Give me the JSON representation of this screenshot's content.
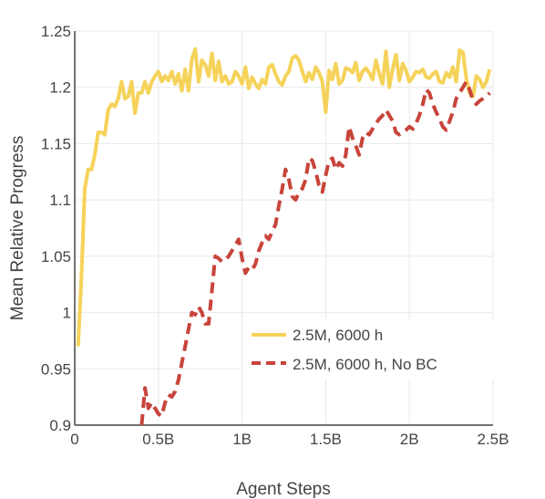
{
  "chart_data": {
    "type": "line",
    "xlabel": "Agent Steps",
    "ylabel": "Mean Relative Progress",
    "xlim": [
      0,
      2500000000
    ],
    "ylim": [
      0.9,
      1.25
    ],
    "xticks": [
      0,
      500000000,
      1000000000,
      1500000000,
      2000000000,
      2500000000
    ],
    "xtick_labels": [
      "0",
      "0.5B",
      "1B",
      "1.5B",
      "2B",
      "2.5B"
    ],
    "yticks": [
      0.9,
      0.95,
      1.0,
      1.05,
      1.1,
      1.15,
      1.2,
      1.25
    ],
    "ytick_labels": [
      "0.9",
      "0.95",
      "1",
      "1.05",
      "1.1",
      "1.15",
      "1.2",
      "1.25"
    ],
    "grid": true,
    "legend_position": "lower-right",
    "series": [
      {
        "name": "2.5M, 6000 h",
        "color": "#F5D35A",
        "dash": "solid",
        "x": [
          20000000,
          40000000,
          60000000,
          80000000,
          100000000,
          120000000,
          140000000,
          160000000,
          180000000,
          200000000,
          220000000,
          240000000,
          260000000,
          280000000,
          300000000,
          320000000,
          340000000,
          360000000,
          380000000,
          400000000,
          420000000,
          440000000,
          460000000,
          480000000,
          500000000,
          520000000,
          540000000,
          560000000,
          580000000,
          600000000,
          620000000,
          640000000,
          660000000,
          680000000,
          700000000,
          720000000,
          740000000,
          760000000,
          780000000,
          800000000,
          820000000,
          840000000,
          860000000,
          880000000,
          900000000,
          920000000,
          940000000,
          960000000,
          980000000,
          1000000000,
          1020000000,
          1040000000,
          1060000000,
          1080000000,
          1100000000,
          1120000000,
          1140000000,
          1160000000,
          1180000000,
          1200000000,
          1220000000,
          1240000000,
          1260000000,
          1280000000,
          1300000000,
          1320000000,
          1340000000,
          1360000000,
          1380000000,
          1400000000,
          1420000000,
          1440000000,
          1460000000,
          1480000000,
          1500000000,
          1520000000,
          1540000000,
          1560000000,
          1580000000,
          1600000000,
          1620000000,
          1640000000,
          1660000000,
          1680000000,
          1700000000,
          1720000000,
          1740000000,
          1760000000,
          1780000000,
          1800000000,
          1820000000,
          1840000000,
          1860000000,
          1880000000,
          1900000000,
          1920000000,
          1940000000,
          1960000000,
          1980000000,
          2000000000,
          2020000000,
          2040000000,
          2060000000,
          2080000000,
          2100000000,
          2120000000,
          2140000000,
          2160000000,
          2180000000,
          2200000000,
          2220000000,
          2240000000,
          2260000000,
          2280000000,
          2300000000,
          2320000000,
          2340000000,
          2360000000,
          2380000000,
          2400000000,
          2420000000,
          2440000000,
          2460000000,
          2480000000
        ],
        "y": [
          0.97,
          1.03,
          1.11,
          1.127,
          1.127,
          1.14,
          1.16,
          1.16,
          1.158,
          1.18,
          1.185,
          1.183,
          1.19,
          1.205,
          1.19,
          1.192,
          1.205,
          1.177,
          1.195,
          1.195,
          1.205,
          1.195,
          1.205,
          1.21,
          1.214,
          1.205,
          1.21,
          1.206,
          1.214,
          1.203,
          1.212,
          1.197,
          1.216,
          1.197,
          1.225,
          1.234,
          1.205,
          1.224,
          1.22,
          1.21,
          1.23,
          1.206,
          1.223,
          1.205,
          1.21,
          1.203,
          1.205,
          1.214,
          1.21,
          1.203,
          1.218,
          1.199,
          1.209,
          1.203,
          1.199,
          1.207,
          1.203,
          1.218,
          1.22,
          1.212,
          1.205,
          1.202,
          1.21,
          1.214,
          1.226,
          1.228,
          1.224,
          1.214,
          1.205,
          1.213,
          1.207,
          1.218,
          1.213,
          1.205,
          1.178,
          1.215,
          1.207,
          1.221,
          1.203,
          1.206,
          1.217,
          1.216,
          1.213,
          1.222,
          1.206,
          1.214,
          1.217,
          1.213,
          1.207,
          1.224,
          1.212,
          1.203,
          1.232,
          1.2,
          1.216,
          1.229,
          1.206,
          1.221,
          1.215,
          1.205,
          1.209,
          1.214,
          1.213,
          1.216,
          1.209,
          1.208,
          1.212,
          1.214,
          1.205,
          1.204,
          1.213,
          1.209,
          1.218,
          1.205,
          1.233,
          1.231,
          1.208,
          1.195,
          1.192,
          1.21,
          1.207,
          1.2,
          1.205,
          1.216
        ]
      },
      {
        "name": "2.5M, 6000 h, No BC",
        "color": "#C8443B",
        "dash": "dashed",
        "x": [
          400000000,
          420000000,
          440000000,
          460000000,
          480000000,
          500000000,
          520000000,
          540000000,
          560000000,
          580000000,
          600000000,
          620000000,
          640000000,
          660000000,
          680000000,
          700000000,
          720000000,
          740000000,
          760000000,
          780000000,
          800000000,
          820000000,
          840000000,
          860000000,
          880000000,
          900000000,
          920000000,
          940000000,
          960000000,
          980000000,
          1000000000,
          1020000000,
          1040000000,
          1060000000,
          1080000000,
          1100000000,
          1120000000,
          1140000000,
          1160000000,
          1180000000,
          1200000000,
          1220000000,
          1240000000,
          1260000000,
          1280000000,
          1300000000,
          1320000000,
          1340000000,
          1360000000,
          1380000000,
          1400000000,
          1420000000,
          1440000000,
          1460000000,
          1480000000,
          1500000000,
          1520000000,
          1540000000,
          1560000000,
          1580000000,
          1600000000,
          1620000000,
          1640000000,
          1660000000,
          1680000000,
          1700000000,
          1720000000,
          1740000000,
          1760000000,
          1780000000,
          1800000000,
          1820000000,
          1840000000,
          1860000000,
          1880000000,
          1900000000,
          1920000000,
          1940000000,
          1960000000,
          1980000000,
          2000000000,
          2020000000,
          2040000000,
          2060000000,
          2080000000,
          2100000000,
          2120000000,
          2140000000,
          2160000000,
          2180000000,
          2200000000,
          2220000000,
          2240000000,
          2260000000,
          2280000000,
          2300000000,
          2320000000,
          2340000000,
          2360000000,
          2380000000,
          2400000000,
          2420000000,
          2440000000,
          2460000000,
          2480000000
        ],
        "y": [
          0.9,
          0.933,
          0.915,
          0.92,
          0.915,
          0.91,
          0.908,
          0.92,
          0.927,
          0.925,
          0.93,
          0.94,
          0.955,
          0.97,
          0.985,
          1.0,
          0.998,
          1.005,
          1.0,
          0.99,
          0.99,
          1.02,
          1.05,
          1.048,
          1.045,
          1.047,
          1.05,
          1.055,
          1.06,
          1.065,
          1.048,
          1.035,
          1.04,
          1.038,
          1.043,
          1.055,
          1.062,
          1.068,
          1.065,
          1.072,
          1.078,
          1.095,
          1.11,
          1.127,
          1.118,
          1.103,
          1.1,
          1.107,
          1.11,
          1.118,
          1.137,
          1.135,
          1.125,
          1.113,
          1.107,
          1.122,
          1.135,
          1.137,
          1.127,
          1.133,
          1.13,
          1.14,
          1.165,
          1.155,
          1.148,
          1.14,
          1.155,
          1.16,
          1.158,
          1.163,
          1.168,
          1.172,
          1.175,
          1.18,
          1.175,
          1.17,
          1.16,
          1.158,
          1.16,
          1.162,
          1.165,
          1.163,
          1.168,
          1.175,
          1.185,
          1.198,
          1.195,
          1.185,
          1.178,
          1.172,
          1.165,
          1.162,
          1.17,
          1.178,
          1.19,
          1.195,
          1.2,
          1.205,
          1.198,
          1.188,
          1.185,
          1.188,
          1.19,
          1.192,
          1.195
        ]
      }
    ]
  }
}
